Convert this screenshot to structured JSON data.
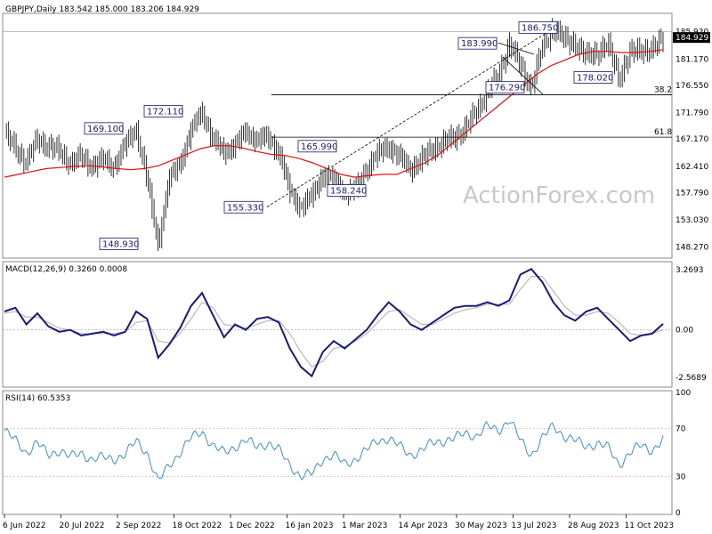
{
  "chart_data": [
    {
      "type": "candlestick",
      "panel": "price",
      "header": "GBPJPY,Daily  183.542 185.000 183.206 184.929",
      "last_price_label": "184.929",
      "y_ticks": [
        "185.930",
        "181.170",
        "176.550",
        "171.790",
        "167.170",
        "162.410",
        "157.790",
        "153.030",
        "148.270"
      ],
      "ylim": [
        146.5,
        189.0
      ],
      "x_labels": [
        "6 Jun 2022",
        "20 Jul 2022",
        "2 Sep 2022",
        "18 Oct 2022",
        "1 Dec 2022",
        "16 Jan 2023",
        "1 Mar 2023",
        "14 Apr 2023",
        "30 May 2023",
        "13 Jul 2023",
        "28 Aug 2023",
        "11 Oct 2023"
      ],
      "annotations": [
        "169.100",
        "172.110",
        "148.930",
        "155.330",
        "165.990",
        "158.240",
        "183.990",
        "176.290",
        "186.750",
        "178.020"
      ],
      "fib_levels": [
        {
          "label": "38.2",
          "value": 174.9
        },
        {
          "label": "61.8",
          "value": 167.5
        }
      ],
      "ma_color": "#e01010",
      "price_color": "#000000",
      "ma_series": [
        160.5,
        161.0,
        161.5,
        162.0,
        162.2,
        162.4,
        162.5,
        162.3,
        162.0,
        161.8,
        162.0,
        162.5,
        163.5,
        164.5,
        165.5,
        166.0,
        166.0,
        165.6,
        165.0,
        164.5,
        164.3,
        163.8,
        163.0,
        162.0,
        161.0,
        160.5,
        160.8,
        161.0,
        161.0,
        162.0,
        163.0,
        164.5,
        166.5,
        168.5,
        170.5,
        172.5,
        174.5,
        176.5,
        178.5,
        180.0,
        181.0,
        182.0,
        182.5,
        182.5,
        182.3,
        182.3,
        182.5,
        182.8
      ],
      "price_series": [
        168.2,
        165.5,
        163.2,
        167.0,
        166.0,
        165.0,
        163.0,
        164.0,
        162.5,
        163.5,
        162.5,
        166.0,
        169.1,
        160.0,
        148.9,
        160.0,
        163.0,
        168.5,
        172.1,
        167.0,
        165.0,
        166.0,
        168.5,
        167.0,
        167.5,
        165.0,
        158.0,
        155.3,
        157.0,
        161.0,
        160.0,
        158.0,
        158.24,
        162.0,
        164.5,
        165.99,
        164.0,
        162.0,
        163.5,
        165.5,
        166.5,
        167.5,
        169.0,
        172.0,
        175.5,
        178.0,
        183.99,
        180.0,
        176.29,
        183.0,
        186.75,
        184.5,
        184.0,
        181.5,
        182.5,
        183.5,
        178.02,
        182.0,
        183.0,
        182.5,
        184.929
      ]
    },
    {
      "type": "line",
      "panel": "macd",
      "header": "MACD(12,26,9) 0.3260 0.0008",
      "y_ticks": [
        "3.2693",
        "0.00",
        "-2.5689"
      ],
      "ylim": [
        -3.0,
        3.6
      ],
      "macd_color": "#1a1a7a",
      "signal_color": "#b0b0b0",
      "macd_series": [
        1.0,
        1.2,
        0.3,
        0.9,
        0.2,
        -0.1,
        0.0,
        -0.3,
        -0.2,
        -0.1,
        -0.3,
        -0.1,
        1.0,
        0.6,
        -1.5,
        -0.8,
        0.1,
        1.3,
        2.0,
        0.8,
        -0.4,
        0.3,
        0.0,
        0.6,
        0.7,
        0.4,
        -1.0,
        -2.0,
        -2.5,
        -1.2,
        -0.6,
        -1.0,
        -0.5,
        0.0,
        0.8,
        1.5,
        1.0,
        0.3,
        0.0,
        0.4,
        0.8,
        1.2,
        1.3,
        1.3,
        1.5,
        1.3,
        1.6,
        3.0,
        3.3,
        2.6,
        1.5,
        0.8,
        0.5,
        1.0,
        1.2,
        0.6,
        0.0,
        -0.6,
        -0.3,
        -0.2,
        0.33
      ],
      "signal_series": [
        0.9,
        1.0,
        0.7,
        0.7,
        0.4,
        0.1,
        0.0,
        -0.2,
        -0.2,
        -0.2,
        -0.2,
        -0.1,
        0.4,
        0.5,
        -0.6,
        -0.7,
        -0.2,
        0.6,
        1.5,
        1.2,
        0.3,
        0.2,
        0.1,
        0.3,
        0.5,
        0.5,
        -0.2,
        -1.2,
        -2.0,
        -1.7,
        -1.0,
        -0.9,
        -0.6,
        -0.2,
        0.4,
        1.0,
        1.1,
        0.7,
        0.3,
        0.3,
        0.6,
        0.9,
        1.1,
        1.2,
        1.4,
        1.4,
        1.4,
        2.2,
        2.9,
        2.9,
        2.1,
        1.3,
        0.8,
        0.8,
        1.0,
        0.9,
        0.4,
        -0.2,
        -0.3,
        -0.2,
        0.0
      ]
    },
    {
      "type": "line",
      "panel": "rsi",
      "header": "RSI(14) 60.5353",
      "y_ticks": [
        "100",
        "70",
        "30",
        "0"
      ],
      "ylim": [
        0,
        100
      ],
      "rsi_color": "#3c8fd0",
      "levels": [
        70,
        30
      ],
      "rsi_series": [
        68,
        60,
        50,
        58,
        48,
        52,
        46,
        50,
        44,
        46,
        45,
        48,
        60,
        50,
        25,
        40,
        50,
        62,
        68,
        55,
        50,
        55,
        60,
        55,
        58,
        52,
        40,
        30,
        32,
        45,
        48,
        40,
        45,
        52,
        60,
        62,
        55,
        48,
        52,
        58,
        60,
        62,
        66,
        64,
        72,
        68,
        78,
        60,
        48,
        62,
        72,
        64,
        60,
        55,
        58,
        54,
        40,
        50,
        56,
        52,
        60.5
      ]
    }
  ],
  "watermark": "ActionForex.com"
}
